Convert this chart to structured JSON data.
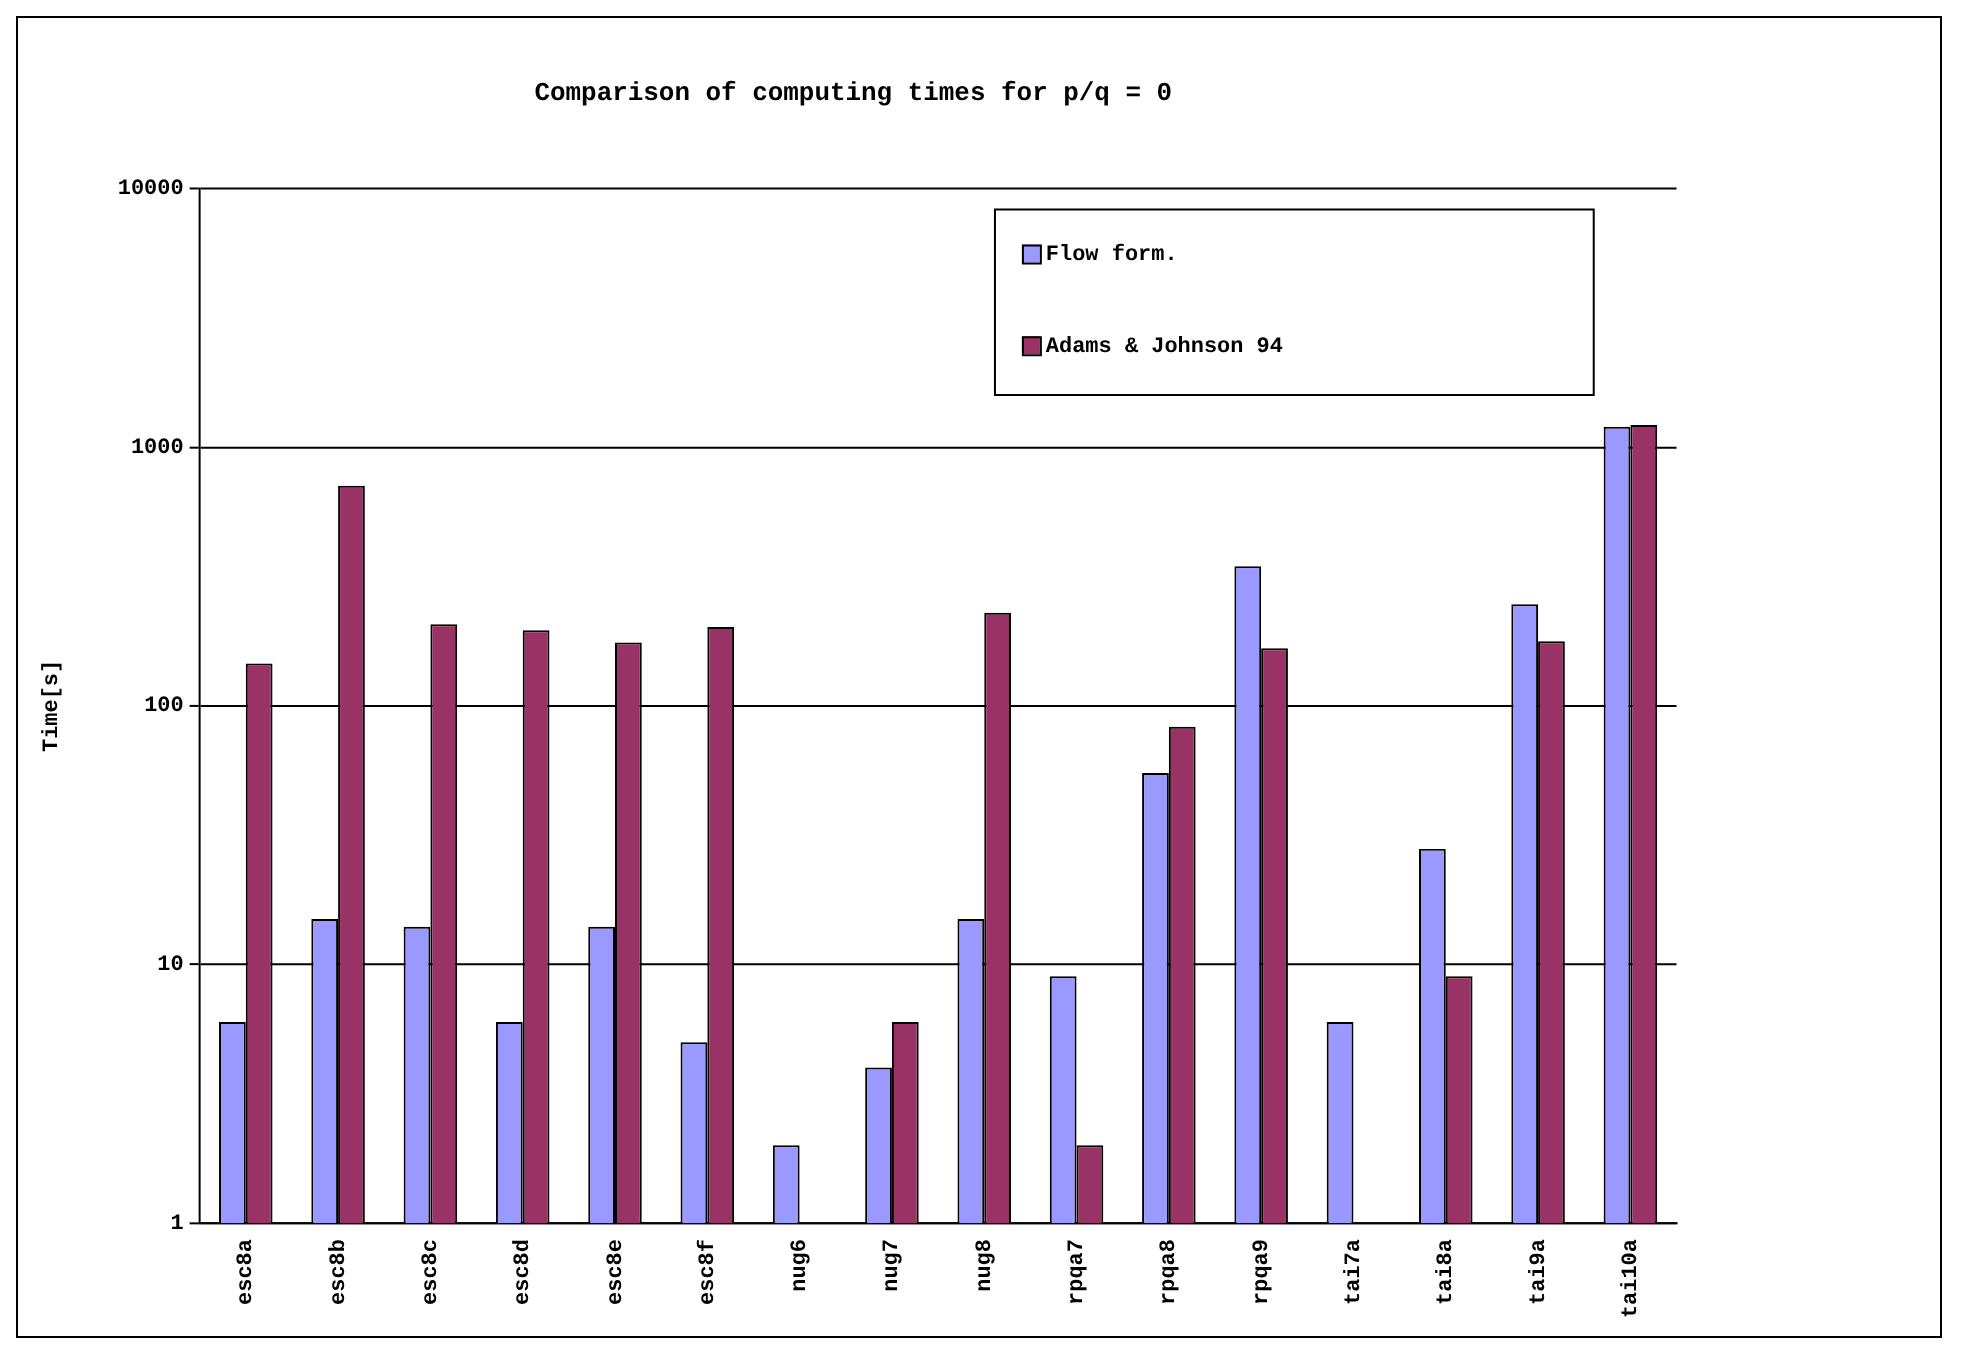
{
  "chart_data": {
    "type": "bar",
    "title": "Comparison of computing times for p/q = 0",
    "ylabel": "Time[s]",
    "categories": [
      "esc8a",
      "esc8b",
      "esc8c",
      "esc8d",
      "esc8e",
      "esc8f",
      "nug6",
      "nug7",
      "nug8",
      "rpqa7",
      "rpqa8",
      "rpqa9",
      "tai7a",
      "tai8a",
      "tai9a",
      "tai10a"
    ],
    "series": [
      {
        "name": "Flow form.",
        "color": "#9999ff",
        "values": [
          6,
          15,
          14,
          6,
          14,
          5,
          2,
          4,
          15,
          9,
          55,
          347,
          6,
          28,
          247,
          1200
        ]
      },
      {
        "name": "Adams & Johnson 94",
        "color": "#993366",
        "values": [
          146,
          710,
          207,
          196,
          176,
          202,
          null,
          6,
          229,
          2,
          83,
          167,
          null,
          9,
          178,
          1220
        ]
      }
    ],
    "log": true,
    "ylim": [
      1,
      10000
    ],
    "yticks": [
      1,
      10,
      100,
      1000,
      10000
    ],
    "grid": "y",
    "legend": "top right"
  }
}
